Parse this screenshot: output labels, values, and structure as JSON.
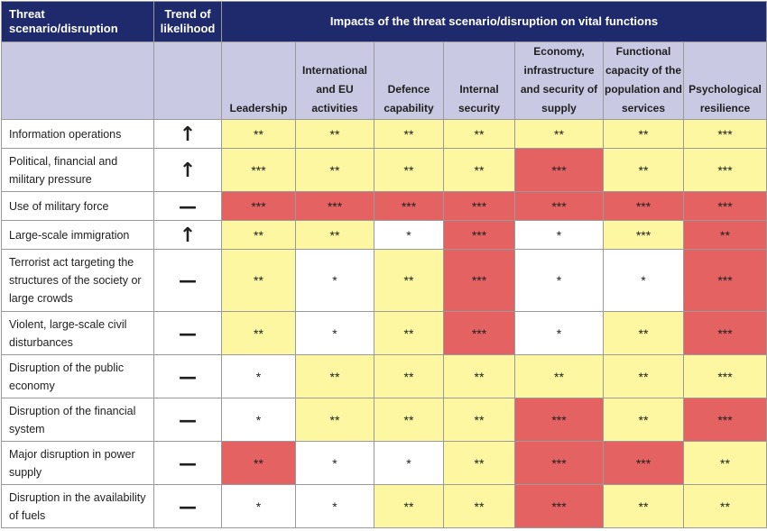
{
  "header": {
    "scenario_label": "Threat scenario/disruption",
    "trend_label": "Trend of likelihood",
    "impacts_label": "Impacts of the threat scenario/disruption on vital functions"
  },
  "functions": [
    "Leadership",
    "International and EU activities",
    "Defence capability",
    "Internal security",
    "Economy, infrastructure and security of supply",
    "Functional capacity of the population and services",
    "Psychological resilience"
  ],
  "legend_colors": {
    "yellow": "#fcf7a0",
    "red": "#e46262",
    "white": "#ffffff",
    "header_dark": "#1e2a6b",
    "header_light": "#c9c9e3"
  },
  "trend_icons": {
    "up": "up-arrow-icon",
    "stable": "dash-icon"
  },
  "rows": [
    {
      "scenario": "Information operations",
      "trend": "up",
      "trend_symbol": "↑",
      "impacts": [
        {
          "v": "**",
          "c": "yellow"
        },
        {
          "v": "**",
          "c": "yellow"
        },
        {
          "v": "**",
          "c": "yellow"
        },
        {
          "v": "**",
          "c": "yellow"
        },
        {
          "v": "**",
          "c": "yellow"
        },
        {
          "v": "**",
          "c": "yellow"
        },
        {
          "v": "***",
          "c": "yellow"
        }
      ]
    },
    {
      "scenario": "Political, financial and military pressure",
      "trend": "up",
      "trend_symbol": "↑",
      "impacts": [
        {
          "v": "***",
          "c": "yellow"
        },
        {
          "v": "**",
          "c": "yellow"
        },
        {
          "v": "**",
          "c": "yellow"
        },
        {
          "v": "**",
          "c": "yellow"
        },
        {
          "v": "***",
          "c": "red"
        },
        {
          "v": "**",
          "c": "yellow"
        },
        {
          "v": "***",
          "c": "yellow"
        }
      ]
    },
    {
      "scenario": "Use of military force",
      "trend": "stable",
      "trend_symbol": "—",
      "impacts": [
        {
          "v": "***",
          "c": "red"
        },
        {
          "v": "***",
          "c": "red"
        },
        {
          "v": "***",
          "c": "red"
        },
        {
          "v": "***",
          "c": "red"
        },
        {
          "v": "***",
          "c": "red"
        },
        {
          "v": "***",
          "c": "red"
        },
        {
          "v": "***",
          "c": "red"
        }
      ]
    },
    {
      "scenario": "Large-scale immigration",
      "trend": "up",
      "trend_symbol": "↑",
      "impacts": [
        {
          "v": "**",
          "c": "yellow"
        },
        {
          "v": "**",
          "c": "yellow"
        },
        {
          "v": "*",
          "c": "white"
        },
        {
          "v": "***",
          "c": "red"
        },
        {
          "v": "*",
          "c": "white"
        },
        {
          "v": "***",
          "c": "yellow"
        },
        {
          "v": "**",
          "c": "red"
        }
      ]
    },
    {
      "scenario": "Terrorist act targeting the structures of the society or large crowds",
      "trend": "stable",
      "trend_symbol": "—",
      "impacts": [
        {
          "v": "**",
          "c": "yellow"
        },
        {
          "v": "*",
          "c": "white"
        },
        {
          "v": "**",
          "c": "yellow"
        },
        {
          "v": "***",
          "c": "red"
        },
        {
          "v": "*",
          "c": "white"
        },
        {
          "v": "*",
          "c": "white"
        },
        {
          "v": "***",
          "c": "red"
        }
      ]
    },
    {
      "scenario": "Violent, large-scale civil disturbances",
      "trend": "stable",
      "trend_symbol": "—",
      "impacts": [
        {
          "v": "**",
          "c": "yellow"
        },
        {
          "v": "*",
          "c": "white"
        },
        {
          "v": "**",
          "c": "yellow"
        },
        {
          "v": "***",
          "c": "red"
        },
        {
          "v": "*",
          "c": "white"
        },
        {
          "v": "**",
          "c": "yellow"
        },
        {
          "v": "***",
          "c": "red"
        }
      ]
    },
    {
      "scenario": "Disruption of the public economy",
      "trend": "stable",
      "trend_symbol": "—",
      "impacts": [
        {
          "v": "*",
          "c": "white"
        },
        {
          "v": "**",
          "c": "yellow"
        },
        {
          "v": "**",
          "c": "yellow"
        },
        {
          "v": "**",
          "c": "yellow"
        },
        {
          "v": "**",
          "c": "yellow"
        },
        {
          "v": "**",
          "c": "yellow"
        },
        {
          "v": "***",
          "c": "yellow"
        }
      ]
    },
    {
      "scenario": "Disruption of the financial system",
      "trend": "stable",
      "trend_symbol": "—",
      "impacts": [
        {
          "v": "*",
          "c": "white"
        },
        {
          "v": "**",
          "c": "yellow"
        },
        {
          "v": "**",
          "c": "yellow"
        },
        {
          "v": "**",
          "c": "yellow"
        },
        {
          "v": "***",
          "c": "red"
        },
        {
          "v": "**",
          "c": "yellow"
        },
        {
          "v": "***",
          "c": "red"
        }
      ]
    },
    {
      "scenario": "Major disruption in power supply",
      "trend": "stable",
      "trend_symbol": "—",
      "impacts": [
        {
          "v": "**",
          "c": "red"
        },
        {
          "v": "*",
          "c": "white"
        },
        {
          "v": "*",
          "c": "white"
        },
        {
          "v": "**",
          "c": "yellow"
        },
        {
          "v": "***",
          "c": "red"
        },
        {
          "v": "***",
          "c": "red"
        },
        {
          "v": "**",
          "c": "yellow"
        }
      ]
    },
    {
      "scenario": "Disruption in the availability of fuels",
      "trend": "stable",
      "trend_symbol": "—",
      "impacts": [
        {
          "v": "*",
          "c": "white"
        },
        {
          "v": "*",
          "c": "white"
        },
        {
          "v": "**",
          "c": "yellow"
        },
        {
          "v": "**",
          "c": "yellow"
        },
        {
          "v": "***",
          "c": "red"
        },
        {
          "v": "**",
          "c": "yellow"
        },
        {
          "v": "**",
          "c": "yellow"
        }
      ]
    }
  ]
}
